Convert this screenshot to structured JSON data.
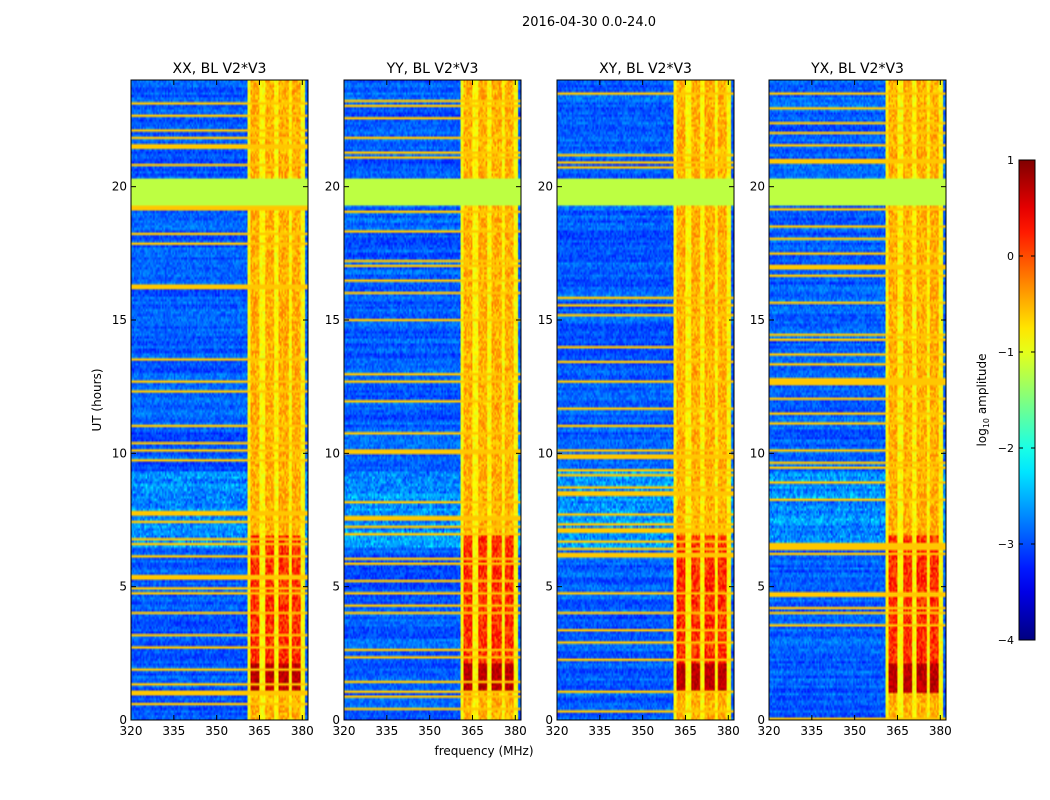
{
  "suptitle": "2016-04-30 0.0-24.0",
  "xlabel": "frequency (MHz)",
  "ylabel": "UT (hours)",
  "colorbar": {
    "label_prefix": "log",
    "label_sub": "10",
    "label_suffix": " amplitude",
    "range": [
      -4,
      1
    ],
    "ticks": [
      "1",
      "0",
      "−1",
      "−2",
      "−3",
      "−4"
    ],
    "colormap": "jet"
  },
  "chart_data": [
    {
      "type": "heatmap",
      "title": "XX, BL V2*V3",
      "x_range": [
        320,
        382
      ],
      "y_range": [
        0,
        24
      ],
      "x_ticks": [
        "320",
        "335",
        "350",
        "365",
        "380"
      ],
      "y_ticks": [
        "0",
        "5",
        "10",
        "15",
        "20"
      ],
      "bright_band_mhz": [
        361,
        381
      ],
      "bright_columns_mhz": [
        361.8,
        365.2,
        366.9,
        370.2,
        371.9,
        375.2,
        376.4,
        379.6
      ],
      "flag_band_hours": [
        19.3,
        20.3
      ],
      "flag_value": -1.2,
      "strong_rfi_hours": [
        [
          1.0,
          2.1
        ],
        [
          2.1,
          6.9
        ]
      ]
    },
    {
      "type": "heatmap",
      "title": "YY, BL V2*V3",
      "x_range": [
        320,
        382
      ],
      "y_range": [
        0,
        24
      ],
      "x_ticks": [
        "320",
        "335",
        "350",
        "365",
        "380"
      ],
      "y_ticks": [
        "0",
        "5",
        "10",
        "15",
        "20"
      ],
      "bright_band_mhz": [
        361,
        381
      ],
      "bright_columns_mhz": [
        361.8,
        365.2,
        366.9,
        370.2,
        371.9,
        375.2,
        376.4,
        379.6
      ],
      "flag_band_hours": [
        19.3,
        20.3
      ],
      "flag_value": -1.2,
      "strong_rfi_hours": [
        [
          1.0,
          2.1
        ],
        [
          2.1,
          6.9
        ]
      ]
    },
    {
      "type": "heatmap",
      "title": "XY, BL V2*V3",
      "x_range": [
        320,
        382
      ],
      "y_range": [
        0,
        24
      ],
      "x_ticks": [
        "320",
        "335",
        "350",
        "365",
        "380"
      ],
      "y_ticks": [
        "0",
        "5",
        "10",
        "15",
        "20"
      ],
      "bright_band_mhz": [
        361,
        381
      ],
      "bright_columns_mhz": [
        361.8,
        365.2,
        366.9,
        370.2,
        371.9,
        375.2,
        376.4,
        379.6
      ],
      "flag_band_hours": [
        19.3,
        20.3
      ],
      "flag_value": -1.2,
      "strong_rfi_hours": [
        [
          1.0,
          2.1
        ],
        [
          2.1,
          6.9
        ]
      ]
    },
    {
      "type": "heatmap",
      "title": "YX, BL V2*V3",
      "x_range": [
        320,
        382
      ],
      "y_range": [
        0,
        24
      ],
      "x_ticks": [
        "320",
        "335",
        "350",
        "365",
        "380"
      ],
      "y_ticks": [
        "0",
        "5",
        "10",
        "15",
        "20"
      ],
      "bright_band_mhz": [
        361,
        381
      ],
      "bright_columns_mhz": [
        361.8,
        365.2,
        366.9,
        370.2,
        371.9,
        375.2,
        376.4,
        379.6
      ],
      "flag_band_hours": [
        19.3,
        20.3
      ],
      "flag_value": -1.2,
      "strong_rfi_hours": [
        [
          1.0,
          2.1
        ],
        [
          2.1,
          6.9
        ]
      ]
    }
  ]
}
